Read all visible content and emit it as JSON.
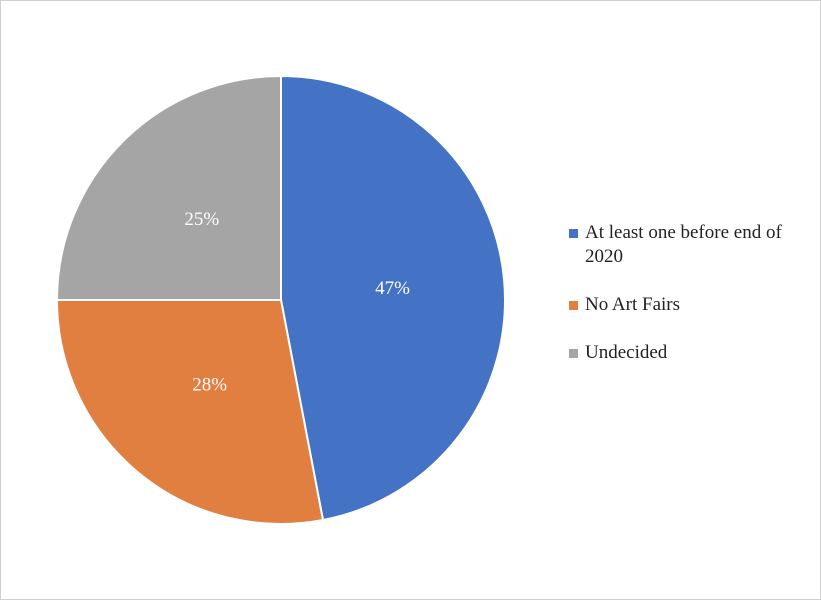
{
  "chart_data": {
    "type": "pie",
    "categories": [
      "At least one before end of 2020",
      "No Art Fairs",
      "Undecided"
    ],
    "values": [
      47,
      28,
      25
    ],
    "value_labels": [
      "47%",
      "28%",
      "25%"
    ],
    "colors": [
      "#4472c4",
      "#e07f3f",
      "#a5a5a5"
    ],
    "legend": "right"
  }
}
